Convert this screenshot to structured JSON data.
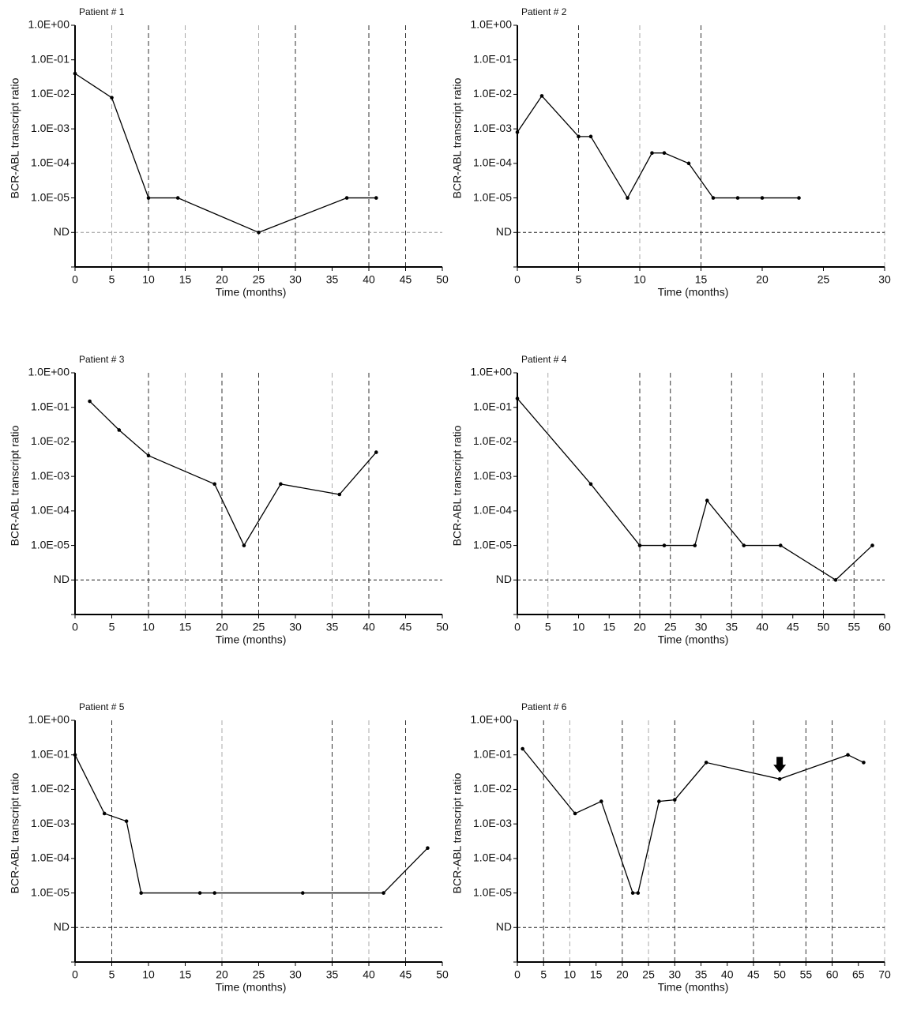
{
  "chart_data": [
    {
      "type": "line",
      "title": "Patient # 1",
      "xlabel": "Time (months)",
      "ylabel": "BCR-ABL transcript ratio",
      "log_y": true,
      "x": [
        0,
        5,
        10,
        14,
        25,
        37,
        41
      ],
      "values": [
        0.04,
        0.008,
        1e-05,
        1e-05,
        1e-06,
        1e-05,
        1e-05
      ],
      "color": "#000000",
      "xlim": [
        0,
        50
      ],
      "xticks": [
        0,
        5,
        10,
        15,
        20,
        25,
        30,
        35,
        40,
        45,
        50
      ],
      "ylim": [
        1e-07,
        1
      ],
      "yticks": [
        {
          "value": 1e-06,
          "label": "ND"
        },
        {
          "value": 1e-05,
          "label": "1.0E-05"
        },
        {
          "value": 0.0001,
          "label": "1.0E-04"
        },
        {
          "value": 0.001,
          "label": "1.0E-03"
        },
        {
          "value": 0.01,
          "label": "1.0E-02"
        },
        {
          "value": 0.1,
          "label": "1.0E-01"
        },
        {
          "value": 1,
          "label": "1.0E+00"
        }
      ],
      "hlines": [
        {
          "y": 1e-06,
          "color": "#999999"
        }
      ],
      "vlines": [
        {
          "x": 5,
          "color": "#aaaaaa"
        },
        {
          "x": 10,
          "color": "#333333"
        },
        {
          "x": 15,
          "color": "#aaaaaa"
        },
        {
          "x": 25,
          "color": "#aaaaaa"
        },
        {
          "x": 30,
          "color": "#333333"
        },
        {
          "x": 40,
          "color": "#333333"
        },
        {
          "x": 45,
          "color": "#333333"
        }
      ]
    },
    {
      "type": "line",
      "title": "Patient # 2",
      "xlabel": "Time (months)",
      "ylabel": "BCR-ABL transcript ratio",
      "log_y": true,
      "x": [
        0,
        2,
        5,
        6,
        9,
        11,
        12,
        14,
        16,
        18,
        20,
        23
      ],
      "values": [
        0.0008,
        0.009,
        0.0006,
        0.0006,
        1e-05,
        0.0002,
        0.0002,
        0.0001,
        1e-05,
        1e-05,
        1e-05,
        1e-05
      ],
      "color": "#000000",
      "xlim": [
        0,
        30
      ],
      "xticks": [
        0,
        5,
        10,
        15,
        20,
        25,
        30
      ],
      "ylim": [
        1e-07,
        1
      ],
      "yticks": [
        {
          "value": 1e-06,
          "label": "ND"
        },
        {
          "value": 1e-05,
          "label": "1.0E-05"
        },
        {
          "value": 0.0001,
          "label": "1.0E-04"
        },
        {
          "value": 0.001,
          "label": "1.0E-03"
        },
        {
          "value": 0.01,
          "label": "1.0E-02"
        },
        {
          "value": 0.1,
          "label": "1.0E-01"
        },
        {
          "value": 1,
          "label": "1.0E+00"
        }
      ],
      "hlines": [
        {
          "y": 1e-06,
          "color": "#222222"
        }
      ],
      "vlines": [
        {
          "x": 5,
          "color": "#333333"
        },
        {
          "x": 10,
          "color": "#aaaaaa"
        },
        {
          "x": 15,
          "color": "#333333"
        },
        {
          "x": 30,
          "color": "#aaaaaa"
        }
      ]
    },
    {
      "type": "line",
      "title": "Patient # 3",
      "xlabel": "Time (months)",
      "ylabel": "BCR-ABL transcript ratio",
      "log_y": true,
      "x": [
        2,
        6,
        10,
        19,
        23,
        28,
        36,
        41
      ],
      "values": [
        0.15,
        0.022,
        0.004,
        0.0006,
        1e-05,
        0.0006,
        0.0003,
        0.005
      ],
      "color": "#000000",
      "xlim": [
        0,
        50
      ],
      "xticks": [
        0,
        5,
        10,
        15,
        20,
        25,
        30,
        35,
        40,
        45,
        50
      ],
      "ylim": [
        1e-07,
        1
      ],
      "yticks": [
        {
          "value": 1e-06,
          "label": "ND"
        },
        {
          "value": 1e-05,
          "label": "1.0E-05"
        },
        {
          "value": 0.0001,
          "label": "1.0E-04"
        },
        {
          "value": 0.001,
          "label": "1.0E-03"
        },
        {
          "value": 0.01,
          "label": "1.0E-02"
        },
        {
          "value": 0.1,
          "label": "1.0E-01"
        },
        {
          "value": 1,
          "label": "1.0E+00"
        }
      ],
      "hlines": [
        {
          "y": 1e-06,
          "color": "#222222"
        }
      ],
      "vlines": [
        {
          "x": 10,
          "color": "#333333"
        },
        {
          "x": 15,
          "color": "#aaaaaa"
        },
        {
          "x": 20,
          "color": "#333333"
        },
        {
          "x": 25,
          "color": "#333333"
        },
        {
          "x": 35,
          "color": "#aaaaaa"
        },
        {
          "x": 40,
          "color": "#333333"
        }
      ]
    },
    {
      "type": "line",
      "title": "Patient # 4",
      "xlabel": "Time (months)",
      "ylabel": "BCR-ABL transcript ratio",
      "log_y": true,
      "x": [
        0,
        12,
        20,
        24,
        29,
        31,
        37,
        43,
        52,
        58
      ],
      "values": [
        0.18,
        0.0006,
        1e-05,
        1e-05,
        1e-05,
        0.0002,
        1e-05,
        1e-05,
        1e-06,
        1e-05
      ],
      "color": "#000000",
      "xlim": [
        0,
        60
      ],
      "xticks": [
        0,
        5,
        10,
        15,
        20,
        25,
        30,
        35,
        40,
        45,
        50,
        55,
        60
      ],
      "ylim": [
        1e-07,
        1
      ],
      "yticks": [
        {
          "value": 1e-06,
          "label": "ND"
        },
        {
          "value": 1e-05,
          "label": "1.0E-05"
        },
        {
          "value": 0.0001,
          "label": "1.0E-04"
        },
        {
          "value": 0.001,
          "label": "1.0E-03"
        },
        {
          "value": 0.01,
          "label": "1.0E-02"
        },
        {
          "value": 0.1,
          "label": "1.0E-01"
        },
        {
          "value": 1,
          "label": "1.0E+00"
        }
      ],
      "hlines": [
        {
          "y": 1e-06,
          "color": "#222222"
        }
      ],
      "vlines": [
        {
          "x": 5,
          "color": "#aaaaaa"
        },
        {
          "x": 20,
          "color": "#333333"
        },
        {
          "x": 25,
          "color": "#333333"
        },
        {
          "x": 35,
          "color": "#333333"
        },
        {
          "x": 40,
          "color": "#aaaaaa"
        },
        {
          "x": 50,
          "color": "#333333"
        },
        {
          "x": 55,
          "color": "#333333"
        }
      ]
    },
    {
      "type": "line",
      "title": "Patient # 5",
      "xlabel": "Time (months)",
      "ylabel": "BCR-ABL transcript ratio",
      "log_y": true,
      "x": [
        0,
        4,
        7,
        9,
        17,
        19,
        31,
        42,
        48
      ],
      "values": [
        0.1,
        0.002,
        0.0012,
        1e-05,
        1e-05,
        1e-05,
        1e-05,
        1e-05,
        0.0002
      ],
      "color": "#000000",
      "xlim": [
        0,
        50
      ],
      "xticks": [
        0,
        5,
        10,
        15,
        20,
        25,
        30,
        35,
        40,
        45,
        50
      ],
      "ylim": [
        1e-07,
        1
      ],
      "yticks": [
        {
          "value": 1e-06,
          "label": "ND"
        },
        {
          "value": 1e-05,
          "label": "1.0E-05"
        },
        {
          "value": 0.0001,
          "label": "1.0E-04"
        },
        {
          "value": 0.001,
          "label": "1.0E-03"
        },
        {
          "value": 0.01,
          "label": "1.0E-02"
        },
        {
          "value": 0.1,
          "label": "1.0E-01"
        },
        {
          "value": 1,
          "label": "1.0E+00"
        }
      ],
      "hlines": [
        {
          "y": 1e-06,
          "color": "#222222"
        }
      ],
      "vlines": [
        {
          "x": 5,
          "color": "#333333"
        },
        {
          "x": 20,
          "color": "#aaaaaa"
        },
        {
          "x": 35,
          "color": "#333333"
        },
        {
          "x": 40,
          "color": "#aaaaaa"
        },
        {
          "x": 45,
          "color": "#333333"
        }
      ]
    },
    {
      "type": "line",
      "title": "Patient # 6",
      "xlabel": "Time (months)",
      "ylabel": "BCR-ABL transcript ratio",
      "log_y": true,
      "x": [
        1,
        11,
        16,
        22,
        23,
        27,
        30,
        36,
        50,
        63,
        66
      ],
      "values": [
        0.15,
        0.002,
        0.0045,
        1e-05,
        1e-05,
        0.0045,
        0.005,
        0.06,
        0.02,
        0.1,
        0.06
      ],
      "color": "#000000",
      "xlim": [
        0,
        70
      ],
      "xticks": [
        0,
        5,
        10,
        15,
        20,
        25,
        30,
        35,
        40,
        45,
        50,
        55,
        60,
        65,
        70
      ],
      "ylim": [
        1e-07,
        1
      ],
      "yticks": [
        {
          "value": 1e-06,
          "label": "ND"
        },
        {
          "value": 1e-05,
          "label": "1.0E-05"
        },
        {
          "value": 0.0001,
          "label": "1.0E-04"
        },
        {
          "value": 0.001,
          "label": "1.0E-03"
        },
        {
          "value": 0.01,
          "label": "1.0E-02"
        },
        {
          "value": 0.1,
          "label": "1.0E-01"
        },
        {
          "value": 1,
          "label": "1.0E+00"
        }
      ],
      "hlines": [
        {
          "y": 1e-06,
          "color": "#222222"
        }
      ],
      "vlines": [
        {
          "x": 5,
          "color": "#333333"
        },
        {
          "x": 10,
          "color": "#aaaaaa"
        },
        {
          "x": 20,
          "color": "#333333"
        },
        {
          "x": 25,
          "color": "#aaaaaa"
        },
        {
          "x": 30,
          "color": "#333333"
        },
        {
          "x": 45,
          "color": "#333333"
        },
        {
          "x": 55,
          "color": "#333333"
        },
        {
          "x": 60,
          "color": "#333333"
        },
        {
          "x": 70,
          "color": "#aaaaaa"
        }
      ],
      "arrow_at": 50
    }
  ]
}
